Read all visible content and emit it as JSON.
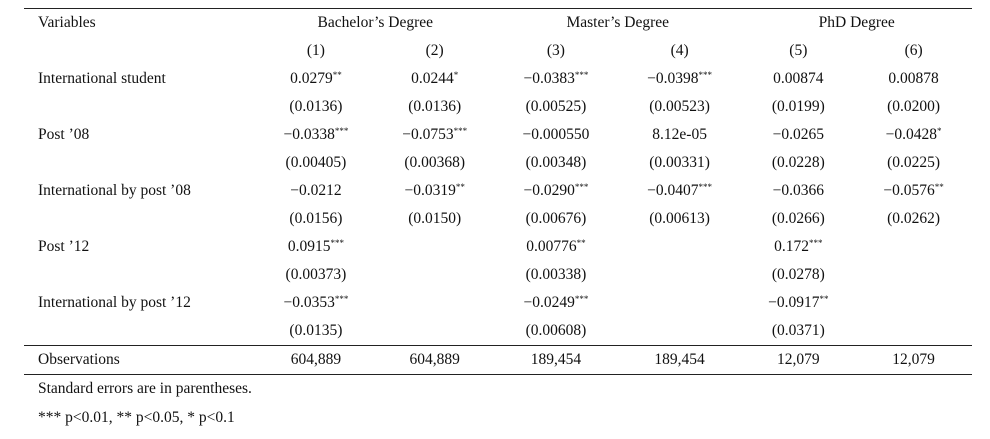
{
  "header": {
    "variables_label": "Variables",
    "groups": [
      "Bachelor’s Degree",
      "Master’s Degree",
      "PhD Degree"
    ],
    "columns": [
      "(1)",
      "(2)",
      "(3)",
      "(4)",
      "(5)",
      "(6)"
    ]
  },
  "rows": [
    {
      "label": "International student",
      "coef": [
        [
          "0.0279",
          "**"
        ],
        [
          "0.0244",
          "*"
        ],
        [
          "-0.0383",
          "***"
        ],
        [
          "-0.0398",
          "***"
        ],
        [
          "0.00874",
          ""
        ],
        [
          "0.00878",
          ""
        ]
      ],
      "se": [
        "(0.0136)",
        "(0.0136)",
        "(0.00525)",
        "(0.00523)",
        "(0.0199)",
        "(0.0200)"
      ]
    },
    {
      "label": "Post ’08",
      "coef": [
        [
          "-0.0338",
          "***"
        ],
        [
          "-0.0753",
          "***"
        ],
        [
          "-0.000550",
          ""
        ],
        [
          "8.12e-05",
          ""
        ],
        [
          "-0.0265",
          ""
        ],
        [
          "-0.0428",
          "*"
        ]
      ],
      "se": [
        "(0.00405)",
        "(0.00368)",
        "(0.00348)",
        "(0.00331)",
        "(0.0228)",
        "(0.0225)"
      ]
    },
    {
      "label": "International by post ’08",
      "coef": [
        [
          "-0.0212",
          ""
        ],
        [
          "-0.0319",
          "**"
        ],
        [
          "-0.0290",
          "***"
        ],
        [
          "-0.0407",
          "***"
        ],
        [
          "-0.0366",
          ""
        ],
        [
          "-0.0576",
          "**"
        ]
      ],
      "se": [
        "(0.0156)",
        "(0.0150)",
        "(0.00676)",
        "(0.00613)",
        "(0.0266)",
        "(0.0262)"
      ]
    },
    {
      "label": "Post ’12",
      "coef": [
        [
          "0.0915",
          "***"
        ],
        [
          "",
          ""
        ],
        [
          "0.00776",
          "**"
        ],
        [
          "",
          ""
        ],
        [
          "0.172",
          "***"
        ],
        [
          "",
          ""
        ]
      ],
      "se": [
        "(0.00373)",
        "",
        "(0.00338)",
        "",
        "(0.0278)",
        ""
      ]
    },
    {
      "label": "International by post ’12",
      "coef": [
        [
          "-0.0353",
          "***"
        ],
        [
          "",
          ""
        ],
        [
          "-0.0249",
          "***"
        ],
        [
          "",
          ""
        ],
        [
          "-0.0917",
          "**"
        ],
        [
          "",
          ""
        ]
      ],
      "se": [
        "(0.0135)",
        "",
        "(0.00608)",
        "",
        "(0.0371)",
        ""
      ]
    }
  ],
  "observations": {
    "label": "Observations",
    "values": [
      "604,889",
      "604,889",
      "189,454",
      "189,454",
      "12,079",
      "12,079"
    ]
  },
  "notes": {
    "se_note": "Standard errors are in parentheses.",
    "sig_note": "*** p<0.01, ** p<0.05, * p<0.1"
  }
}
